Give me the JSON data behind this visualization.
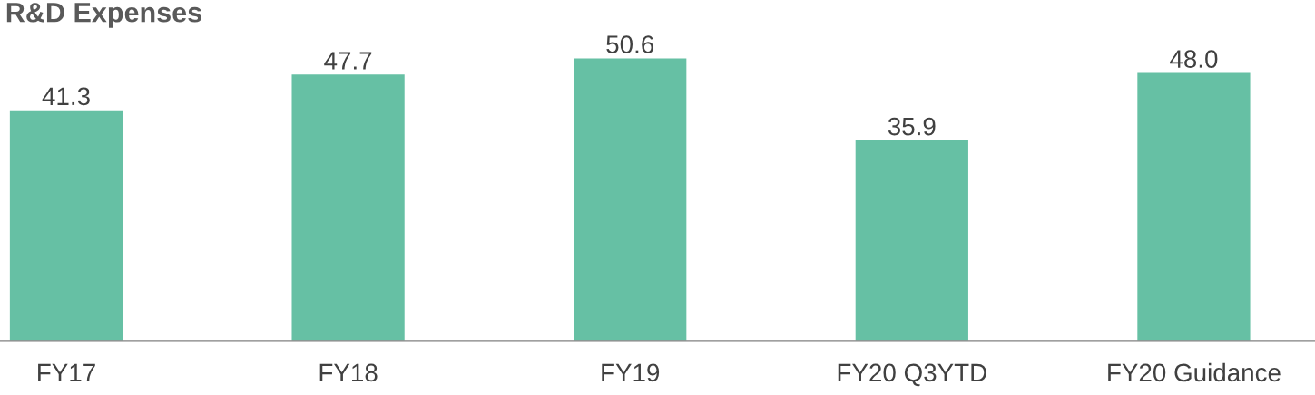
{
  "chart_data": {
    "type": "bar",
    "title": "R&D Expenses",
    "categories": [
      "FY17",
      "FY18",
      "FY19",
      "FY20 Q3YTD",
      "FY20 Guidance"
    ],
    "values": [
      41.3,
      47.7,
      50.6,
      35.9,
      48.0
    ],
    "color": "#66c0a4",
    "value_labels": [
      "41.3",
      "47.7",
      "50.6",
      "35.9",
      "48.0"
    ],
    "grid": false,
    "legend": false
  }
}
